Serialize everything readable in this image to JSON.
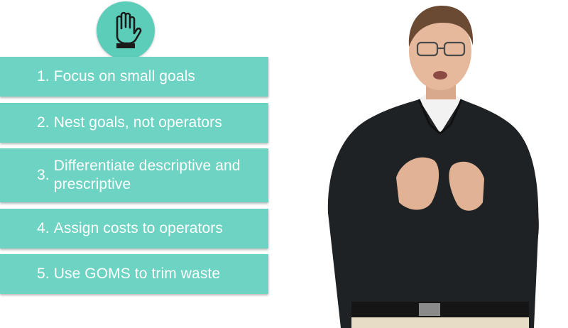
{
  "badge": {
    "icon": "raised-hand-icon",
    "color": "#5ccdb9"
  },
  "list": {
    "item_color": "#6dd3c2",
    "items": [
      {
        "number": "1.",
        "text": "Focus on small goals"
      },
      {
        "number": "2.",
        "text": "Nest goals, not operators"
      },
      {
        "number": "3.",
        "text": "Differentiate descriptive and prescriptive"
      },
      {
        "number": "4.",
        "text": "Assign costs to operators"
      },
      {
        "number": "5.",
        "text": "Use GOMS to trim waste"
      }
    ]
  },
  "presenter": {
    "shirt_color": "#1f2224",
    "skin_color": "#e6b89c",
    "hair_color": "#6a4a33"
  }
}
